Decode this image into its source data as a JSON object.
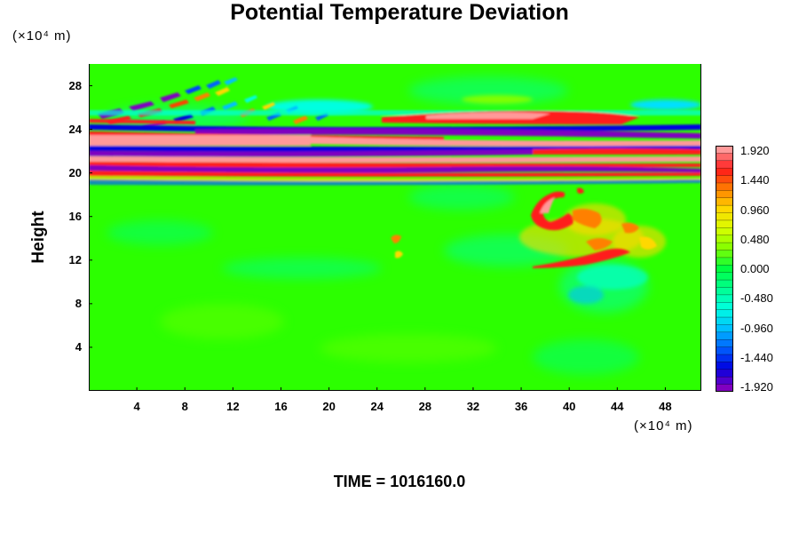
{
  "chart_data": {
    "type": "heatmap",
    "title": "Potential Temperature Deviation",
    "xlabel": "",
    "xunit": "(×10⁴ m)",
    "ylabel": "Height",
    "yunit": "(×10⁴ m)",
    "x_ticks": [
      4,
      8,
      12,
      16,
      20,
      24,
      28,
      32,
      36,
      40,
      44,
      48
    ],
    "y_ticks": [
      4,
      8,
      12,
      16,
      20,
      24,
      28
    ],
    "xlim": [
      0,
      51
    ],
    "ylim": [
      0,
      30
    ],
    "colorbar": {
      "tick_labels": [
        "1.920",
        "1.440",
        "0.960",
        "0.480",
        "0.000",
        "-0.480",
        "-0.960",
        "-1.440",
        "-1.920"
      ],
      "range": [
        -1.92,
        1.92
      ],
      "colors_high_to_low": [
        "#ff9999",
        "#ff1a1a",
        "#ff8000",
        "#ffd800",
        "#d8ff00",
        "#80ff00",
        "#00ff40",
        "#00ff90",
        "#00ffe0",
        "#00c0ff",
        "#0060ff",
        "#0000e0",
        "#8000c0"
      ]
    },
    "grid": false,
    "features": [
      {
        "description": "layered alternating positive/negative bands",
        "y_range": [
          19,
          26
        ],
        "x_range": [
          0,
          51
        ]
      },
      {
        "description": "wave train above bands",
        "y_range": [
          23,
          28
        ],
        "x_range": [
          0,
          14
        ]
      },
      {
        "description": "positive anomaly blob",
        "center": [
          40,
          15
        ],
        "max": 1.92
      }
    ],
    "background_value": 0.0
  },
  "footer": {
    "time_label": "TIME = 1016160.0"
  }
}
